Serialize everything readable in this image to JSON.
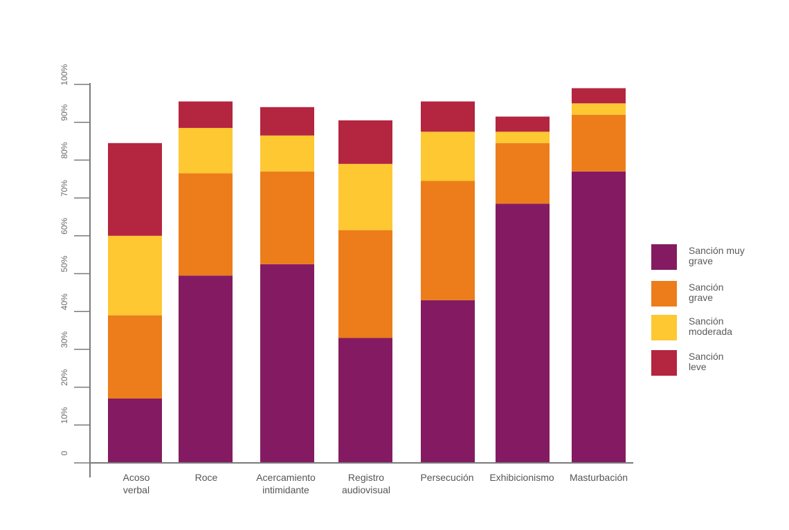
{
  "chart_data": {
    "type": "bar",
    "stacked": true,
    "orientation": "vertical",
    "categories": [
      [
        "Acoso",
        "verbal"
      ],
      [
        "Roce"
      ],
      [
        "Acercamiento",
        "intimidante"
      ],
      [
        "Registro",
        "audiovisual"
      ],
      [
        "Persecución"
      ],
      [
        "Exhibicionismo"
      ],
      [
        "Masturbación"
      ]
    ],
    "series": [
      {
        "name": "Sanción muy grave",
        "legend_lines": [
          "Sanción muy",
          "grave"
        ],
        "color": "#841B62",
        "values": [
          17,
          49.5,
          52.5,
          33,
          43,
          68.5,
          77
        ]
      },
      {
        "name": "Sanción grave",
        "legend_lines": [
          "Sanción",
          "grave"
        ],
        "color": "#EC7D1A",
        "values": [
          22,
          27,
          24.5,
          28.5,
          31.5,
          16,
          15
        ]
      },
      {
        "name": "Sanción moderada",
        "legend_lines": [
          "Sanción",
          "moderada"
        ],
        "color": "#FDC832",
        "values": [
          21,
          12,
          9.5,
          17.5,
          13,
          3,
          3
        ]
      },
      {
        "name": "Sanción leve",
        "legend_lines": [
          "Sanción",
          "leve"
        ],
        "color": "#B42540",
        "values": [
          24.5,
          7,
          7.5,
          11.5,
          8,
          4,
          4
        ]
      }
    ],
    "y_ticks": [
      "0",
      "10%",
      "20%",
      "30%",
      "40%",
      "50%",
      "60%",
      "70%",
      "80%",
      "90%",
      "100%"
    ],
    "ylim": [
      0,
      100
    ],
    "legend_position": "right",
    "grid": false
  }
}
